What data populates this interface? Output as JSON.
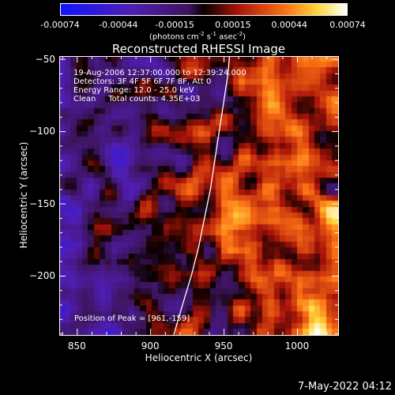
{
  "chart_data": {
    "type": "heatmap",
    "title": "Reconstructed RHESSI Image",
    "xlabel": "Heliocentric X (arcsec)",
    "ylabel": "Heliocentric Y (arcsec)",
    "xlim": [
      838,
      1028
    ],
    "ylim": [
      -241,
      -48
    ],
    "x_ticks": [
      "850",
      "900",
      "950",
      "1000"
    ],
    "x_tick_values": [
      850,
      900,
      950,
      1000
    ],
    "y_ticks": [
      "-50",
      "-100",
      "-150",
      "-200"
    ],
    "y_tick_values": [
      -50,
      -100,
      -150,
      -200
    ],
    "colorbar": {
      "ticks": [
        "-0.00074",
        "-0.00044",
        "-0.00015",
        "0.00015",
        "0.00044",
        "0.00074"
      ],
      "tick_values": [
        -0.00074,
        -0.00044,
        -0.00015,
        0.00015,
        0.00044,
        0.00074
      ],
      "range": [
        -0.00074,
        0.00074
      ],
      "unit_prefix": "(photons cm",
      "unit_exp1": "-2",
      "unit_mid": " s",
      "unit_exp2": "-1",
      "unit_mid2": " asec",
      "unit_exp3": "-2",
      "unit_suffix": ")"
    },
    "annotations": {
      "time_range": "19-Aug-2006 12:37:00.000 to 12:39:24.000",
      "detectors": "Detectors: 3F 4F 5F 6F 7F 8F, Att 0",
      "energy_range": "Energy Range: 12.0 - 25.0 keV",
      "clean_counts": "Clean     Total counts: 4.35E+03",
      "peak_position": "Position of Peak = [961,-159]"
    },
    "limb_curve": [
      [
        916,
        -241
      ],
      [
        922,
        -220
      ],
      [
        928,
        -200
      ],
      [
        933,
        -180
      ],
      [
        937,
        -160
      ],
      [
        941,
        -140
      ],
      [
        944,
        -120
      ],
      [
        947,
        -100
      ],
      [
        950,
        -80
      ],
      [
        953,
        -60
      ],
      [
        954,
        -48
      ]
    ],
    "peak": [
      961,
      -159
    ],
    "colors": {
      "background": "#000000",
      "blue": "#1010ff",
      "purple": "#6a20b0",
      "red": "#e03010",
      "yellow": "#ffe040",
      "white": "#ffffff"
    }
  },
  "footer": {
    "timestamp": "7-May-2022 04:12"
  }
}
